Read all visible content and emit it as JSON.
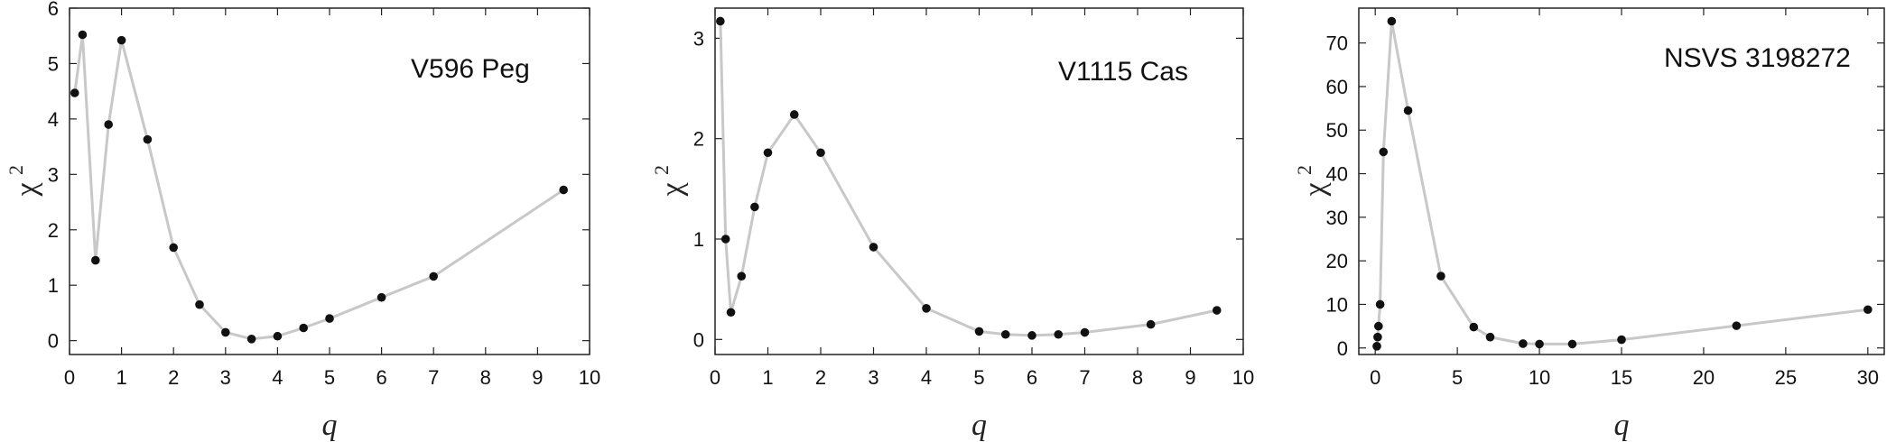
{
  "chart_data": [
    {
      "type": "line",
      "annotation": "V596 Peg",
      "xlabel": "q",
      "ylabel": "χ",
      "ylabel_sup": "2",
      "xlim": [
        0,
        10
      ],
      "ylim": [
        -0.25,
        6
      ],
      "xticks": [
        0,
        1,
        2,
        3,
        4,
        5,
        6,
        7,
        8,
        9,
        10
      ],
      "yticks": [
        0,
        1,
        2,
        3,
        4,
        5,
        6
      ],
      "series": [
        {
          "x": [
            0.1,
            0.25,
            0.5,
            0.75,
            1.0,
            1.5,
            2.0,
            2.5,
            3.0,
            3.5,
            4.0,
            4.5,
            5.0,
            6.0,
            7.0,
            9.5
          ],
          "y": [
            4.47,
            5.52,
            1.45,
            3.9,
            5.42,
            3.63,
            1.68,
            0.65,
            0.15,
            0.03,
            0.08,
            0.23,
            0.4,
            0.78,
            1.16,
            2.72
          ]
        }
      ],
      "colors": {
        "line": "#c8c8c8",
        "marker": "#111111"
      }
    },
    {
      "type": "line",
      "annotation": "V1115 Cas",
      "xlabel": "q",
      "ylabel": "χ",
      "ylabel_sup": "2",
      "xlim": [
        0,
        10
      ],
      "ylim": [
        -0.15,
        3.3
      ],
      "xticks": [
        0,
        1,
        2,
        3,
        4,
        5,
        6,
        7,
        8,
        9,
        10
      ],
      "yticks": [
        0,
        1,
        2,
        3
      ],
      "series": [
        {
          "x": [
            0.1,
            0.2,
            0.3,
            0.5,
            0.75,
            1.0,
            1.5,
            2.0,
            3.0,
            4.0,
            5.0,
            5.5,
            6.0,
            6.5,
            7.0,
            8.25,
            9.5
          ],
          "y": [
            3.17,
            1.0,
            0.27,
            0.63,
            1.32,
            1.86,
            2.24,
            1.86,
            0.92,
            0.31,
            0.08,
            0.05,
            0.04,
            0.05,
            0.07,
            0.15,
            0.29
          ]
        }
      ],
      "colors": {
        "line": "#c8c8c8",
        "marker": "#111111"
      }
    },
    {
      "type": "line",
      "annotation": "NSVS 3198272",
      "xlabel": "q",
      "ylabel": "χ",
      "ylabel_sup": "2",
      "xlim": [
        -1,
        31
      ],
      "ylim": [
        -1.5,
        78
      ],
      "xticks": [
        0,
        5,
        10,
        15,
        20,
        25,
        30
      ],
      "yticks": [
        0,
        10,
        20,
        30,
        40,
        50,
        60,
        70
      ],
      "series": [
        {
          "x": [
            0.1,
            0.15,
            0.2,
            0.3,
            0.5,
            1.0,
            2.0,
            4.0,
            6.0,
            7.0,
            9.0,
            10.0,
            12.0,
            15.0,
            22.0,
            30.0
          ],
          "y": [
            0.4,
            2.5,
            5.0,
            10.0,
            45.0,
            75.0,
            54.5,
            16.5,
            4.8,
            2.5,
            1.0,
            0.9,
            0.9,
            1.9,
            5.1,
            8.8
          ]
        }
      ],
      "colors": {
        "line": "#c8c8c8",
        "marker": "#111111"
      }
    }
  ]
}
